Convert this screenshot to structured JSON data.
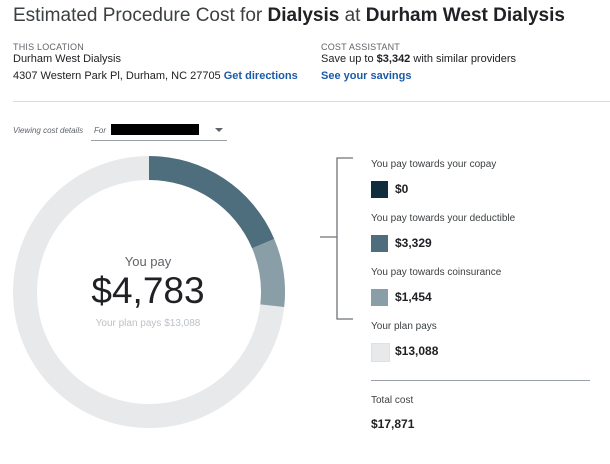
{
  "header": {
    "title_prefix": "Estimated Procedure Cost for ",
    "procedure": "Dialysis",
    "title_mid": " at ",
    "facility": "Durham West Dialysis"
  },
  "location": {
    "label": "THIS LOCATION",
    "name": "Durham West Dialysis",
    "address": "4307 Western Park Pl, Durham, NC 27705",
    "directions_link": "Get directions"
  },
  "assistant": {
    "label": "COST ASSISTANT",
    "save_prefix": "Save up to ",
    "save_amount": "$3,342",
    "save_suffix": " with similar providers",
    "link": "See your savings"
  },
  "viewer": {
    "label": "Viewing cost details",
    "for_label": "For"
  },
  "summary": {
    "you_pay_label": "You pay",
    "you_pay_amount": "$4,783",
    "plan_pays_text": "Your plan pays $13,088"
  },
  "breakdown": [
    {
      "label": "You pay towards your copay",
      "value": "$0",
      "amount": 0,
      "color": "#0f2d3c"
    },
    {
      "label": "You pay towards your deductible",
      "value": "$3,329",
      "amount": 3329,
      "color": "#4e6e7e"
    },
    {
      "label": "You pay towards coinsurance",
      "value": "$1,454",
      "amount": 1454,
      "color": "#8a9ea7"
    },
    {
      "label": "Your plan pays",
      "value": "$13,088",
      "amount": 13088,
      "color": "#e8e9ea"
    }
  ],
  "total": {
    "label": "Total cost",
    "value": "$17,871"
  }
}
